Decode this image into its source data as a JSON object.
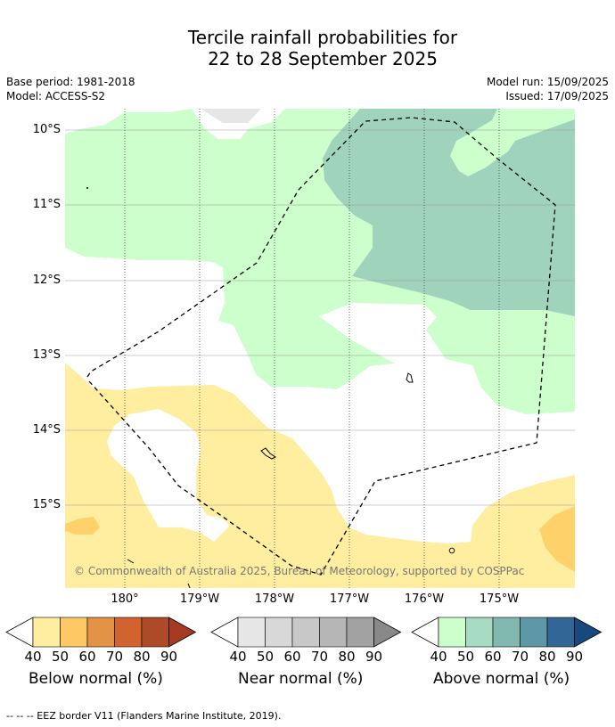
{
  "title_line1": "Tercile rainfall probabilities for",
  "title_line2": "22 to 28 September 2025",
  "meta": {
    "base_period": "Base period: 1981-2018",
    "model": "Model: ACCESS-S2",
    "model_run": "Model run: 15/09/2025",
    "issued": "Issued: 17/09/2025"
  },
  "map": {
    "lat_labels": [
      "10°S",
      "11°S",
      "12°S",
      "13°S",
      "14°S",
      "15°S"
    ],
    "lon_labels": [
      "180°",
      "179°W",
      "178°W",
      "177°W",
      "176°W",
      "175°W"
    ],
    "copyright": "© Commonwealth of Australia 2025, Bureau of Meteorology, supported by COSPPac",
    "colors": {
      "above_40": "#ccffcc",
      "above_50": "#9fd3bb",
      "below_40": "#ffeda0",
      "below_50": "#fed16b",
      "near_40": "#e6e6e6",
      "eez": "#000000"
    }
  },
  "colorbars": [
    {
      "title": "Below normal (%)",
      "ticks": [
        "40",
        "50",
        "60",
        "70",
        "80",
        "90"
      ],
      "colors": [
        "#ffeda0",
        "#fec965",
        "#e39346",
        "#d1632f",
        "#ad4a27",
        "#a53a22"
      ]
    },
    {
      "title": "Near normal (%)",
      "ticks": [
        "40",
        "50",
        "60",
        "70",
        "80",
        "90"
      ],
      "colors": [
        "#e6e6e6",
        "#d8d8d8",
        "#c8c8c8",
        "#b6b6b6",
        "#a2a2a2",
        "#898989"
      ]
    },
    {
      "title": "Above normal (%)",
      "ticks": [
        "40",
        "50",
        "60",
        "70",
        "80",
        "90"
      ],
      "colors": [
        "#ccffcc",
        "#a8dcc2",
        "#81b8b0",
        "#5e98a6",
        "#326697",
        "#18497e"
      ]
    }
  ],
  "footer": "--  --  -- EEZ border V11 (Flanders Marine Institute, 2019)."
}
